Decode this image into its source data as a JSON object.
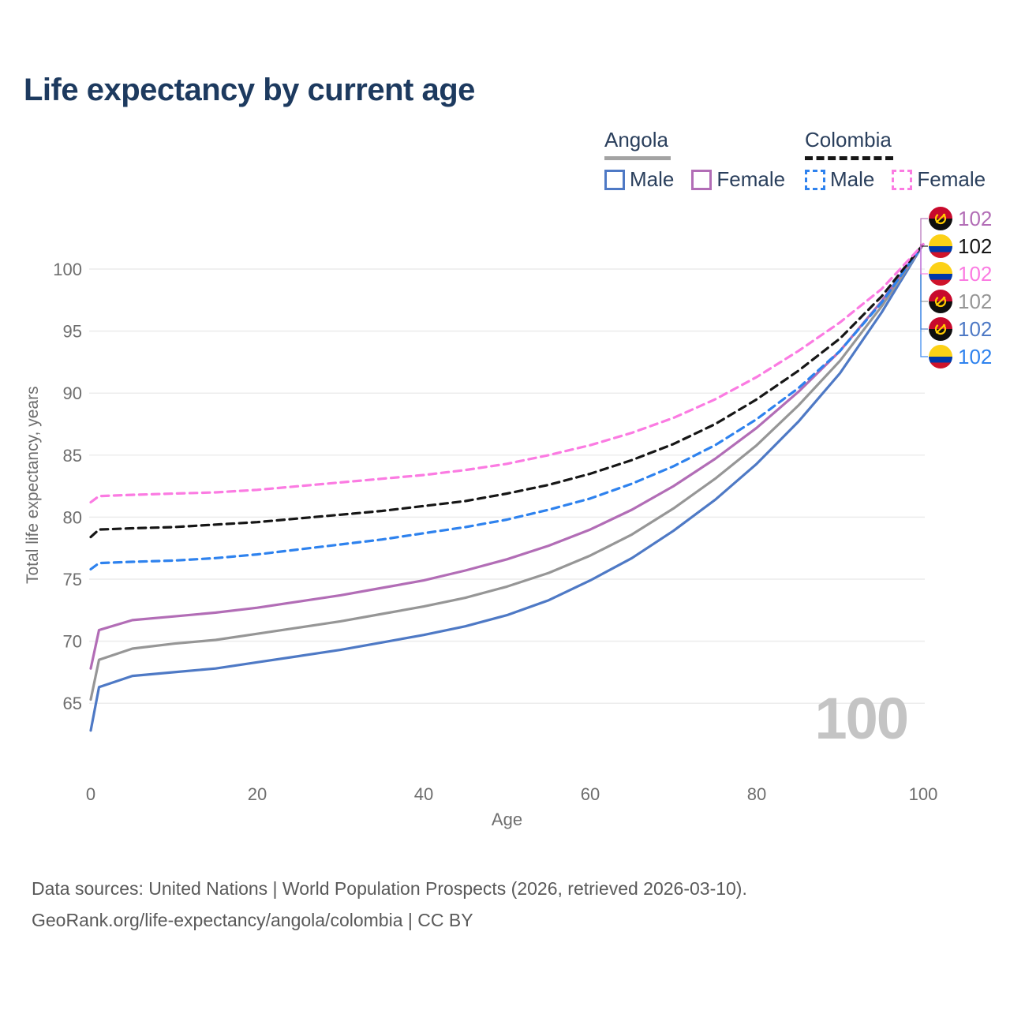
{
  "title": "Life expectancy by current age",
  "watermark": "100",
  "legend": {
    "groups": [
      {
        "label": "Angola",
        "underline_color": "#a3a3a3",
        "underline_style": "solid",
        "items": [
          {
            "label": "Male",
            "color": "#4e79c5",
            "style": "solid"
          },
          {
            "label": "Female",
            "color": "#b26db6",
            "style": "solid"
          }
        ]
      },
      {
        "label": "Colombia",
        "underline_color": "#161616",
        "underline_style": "dashed",
        "items": [
          {
            "label": "Male",
            "color": "#2e82ee",
            "style": "dashed"
          },
          {
            "label": "Female",
            "color": "#fb7be2",
            "style": "dashed"
          }
        ]
      }
    ]
  },
  "chart_data": {
    "type": "line",
    "title": "Life expectancy by current age",
    "xlabel": "Age",
    "ylabel": "Total life expectancy, years",
    "xlim": [
      0,
      100
    ],
    "ylim": [
      62,
      103
    ],
    "xticks": [
      0,
      20,
      40,
      60,
      80,
      100
    ],
    "yticks": [
      65,
      70,
      75,
      80,
      85,
      90,
      95,
      100
    ],
    "grid": "horizontal",
    "legend_position": "top-right",
    "x": [
      0,
      1,
      5,
      10,
      15,
      20,
      25,
      30,
      35,
      40,
      45,
      50,
      55,
      60,
      65,
      70,
      75,
      80,
      85,
      90,
      95,
      100
    ],
    "series": [
      {
        "name": "Angola Male",
        "country": "Angola",
        "sex": "male",
        "color": "#4e79c5",
        "dash": "solid",
        "flag": "angola",
        "end_label": "102",
        "label_slot": 4,
        "values": [
          62.8,
          66.3,
          67.2,
          67.5,
          67.8,
          68.3,
          68.8,
          69.3,
          69.9,
          70.5,
          71.2,
          72.1,
          73.3,
          74.9,
          76.7,
          78.9,
          81.4,
          84.3,
          87.7,
          91.6,
          96.5,
          102
        ]
      },
      {
        "name": "Angola",
        "country": "Angola",
        "sex": "both",
        "color": "#969696",
        "dash": "solid",
        "flag": "angola",
        "end_label": "102",
        "label_slot": 3,
        "values": [
          65.3,
          68.5,
          69.4,
          69.8,
          70.1,
          70.6,
          71.1,
          71.6,
          72.2,
          72.8,
          73.5,
          74.4,
          75.5,
          76.9,
          78.6,
          80.7,
          83.1,
          85.8,
          89.0,
          92.6,
          97.0,
          102
        ]
      },
      {
        "name": "Angola Female",
        "country": "Angola",
        "sex": "female",
        "color": "#b26db6",
        "dash": "solid",
        "flag": "angola",
        "end_label": "102",
        "label_slot": 0,
        "values": [
          67.8,
          70.9,
          71.7,
          72.0,
          72.3,
          72.7,
          73.2,
          73.7,
          74.3,
          74.9,
          75.7,
          76.6,
          77.7,
          79.0,
          80.6,
          82.5,
          84.7,
          87.2,
          90.1,
          93.4,
          97.4,
          102
        ]
      },
      {
        "name": "Colombia Male",
        "country": "Colombia",
        "sex": "male",
        "color": "#2e82ee",
        "dash": "dashed",
        "flag": "colombia",
        "end_label": "102",
        "label_slot": 5,
        "values": [
          75.8,
          76.3,
          76.4,
          76.5,
          76.7,
          77.0,
          77.4,
          77.8,
          78.2,
          78.7,
          79.2,
          79.8,
          80.6,
          81.5,
          82.7,
          84.1,
          85.8,
          87.9,
          90.4,
          93.4,
          97.3,
          102
        ]
      },
      {
        "name": "Colombia",
        "country": "Colombia",
        "sex": "both",
        "color": "#161616",
        "dash": "dashed",
        "flag": "colombia",
        "end_label": "102",
        "label_slot": 1,
        "values": [
          78.4,
          79.0,
          79.1,
          79.2,
          79.4,
          79.6,
          79.9,
          80.2,
          80.5,
          80.9,
          81.3,
          81.9,
          82.6,
          83.5,
          84.6,
          85.9,
          87.5,
          89.5,
          91.8,
          94.4,
          97.8,
          102
        ]
      },
      {
        "name": "Colombia Female",
        "country": "Colombia",
        "sex": "female",
        "color": "#fb7be2",
        "dash": "dashed",
        "flag": "colombia",
        "end_label": "102",
        "label_slot": 2,
        "values": [
          81.2,
          81.7,
          81.8,
          81.9,
          82.0,
          82.2,
          82.5,
          82.8,
          83.1,
          83.4,
          83.8,
          84.3,
          85.0,
          85.8,
          86.8,
          88.0,
          89.5,
          91.3,
          93.4,
          95.7,
          98.4,
          102
        ]
      }
    ]
  },
  "footer": {
    "line1": "Data sources: United Nations | World Population Prospects (2026, retrieved 2026-03-10).",
    "line2": "GeoRank.org/life-expectancy/angola/colombia | CC BY"
  }
}
